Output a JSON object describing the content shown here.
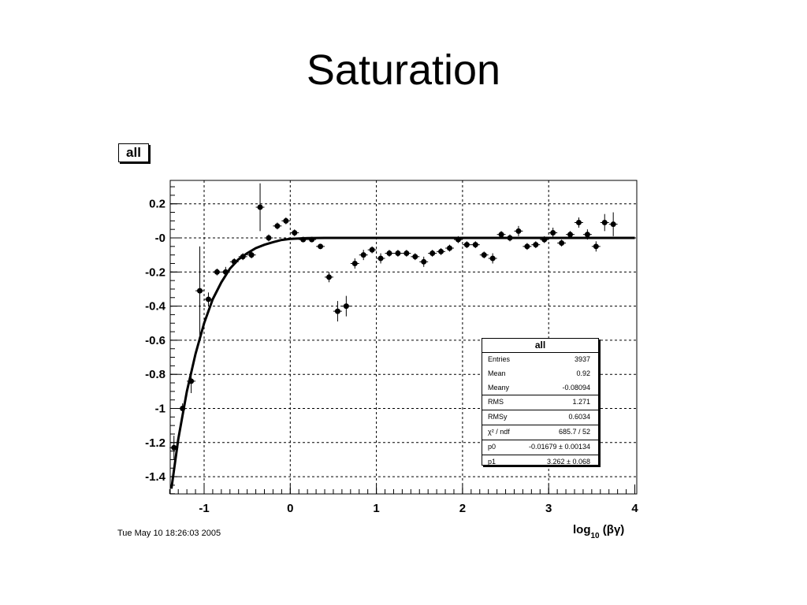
{
  "slide": {
    "title": "Saturation"
  },
  "histogram": {
    "label": "all"
  },
  "timestamp": "Tue May 10 18:26:03 2005",
  "stats": {
    "title": "all",
    "rows": [
      {
        "key": "Entries",
        "value": "3937"
      },
      {
        "key": "Mean",
        "value": "0.92"
      },
      {
        "key": "Meany",
        "value": "-0.08094"
      },
      {
        "key": "RMS",
        "value": "1.271"
      },
      {
        "key": "RMSy",
        "value": "0.6034"
      },
      {
        "key": "χ² / ndf",
        "value": "685.7 / 52"
      },
      {
        "key": "p0",
        "value": "-0.01679 ± 0.00134"
      },
      {
        "key": "p1",
        "value": "3.262 ± 0.068"
      }
    ]
  },
  "chart_data": {
    "type": "scatter",
    "title": "",
    "xlabel": "log₁₀ (βγ)",
    "ylabel": "",
    "xlim": [
      -1.4,
      4.0
    ],
    "ylim": [
      -1.5,
      0.33
    ],
    "grid": true,
    "xticks": [
      -1,
      0,
      1,
      2,
      3,
      4
    ],
    "xtick_labels": [
      "-1",
      "0",
      "1",
      "2",
      "3",
      "4"
    ],
    "yticks": [
      0.2,
      0.0,
      -0.2,
      -0.4,
      -0.6,
      -0.8,
      -1.0,
      -1.2,
      -1.4
    ],
    "ytick_labels": [
      "0.2",
      "-0",
      "-0.2",
      "-0.4",
      "-0.6",
      "-0.8",
      "-1",
      "-1.2",
      "-1.4"
    ],
    "series": [
      {
        "points": [
          {
            "x": -1.35,
            "y": -1.23,
            "ey": 0.07
          },
          {
            "x": -1.25,
            "y": -1.0,
            "ey": 0.03
          },
          {
            "x": -1.15,
            "y": -0.84,
            "ey": 0.07
          },
          {
            "x": -1.05,
            "y": -0.31,
            "ey": 0.26
          },
          {
            "x": -0.95,
            "y": -0.36,
            "ey": 0.04
          },
          {
            "x": -0.85,
            "y": -0.2,
            "ey": 0.02
          },
          {
            "x": -0.75,
            "y": -0.2,
            "ey": 0.03
          },
          {
            "x": -0.65,
            "y": -0.14,
            "ey": 0.02
          },
          {
            "x": -0.55,
            "y": -0.11,
            "ey": 0.02
          },
          {
            "x": -0.45,
            "y": -0.1,
            "ey": 0.02
          },
          {
            "x": -0.35,
            "y": 0.18,
            "ey": 0.14
          },
          {
            "x": -0.25,
            "y": 0.0,
            "ey": 0.02
          },
          {
            "x": -0.15,
            "y": 0.07,
            "ey": 0.02
          },
          {
            "x": -0.05,
            "y": 0.1,
            "ey": 0.02
          },
          {
            "x": 0.05,
            "y": 0.03,
            "ey": 0.02
          },
          {
            "x": 0.15,
            "y": -0.01,
            "ey": 0.015
          },
          {
            "x": 0.25,
            "y": -0.01,
            "ey": 0.015
          },
          {
            "x": 0.35,
            "y": -0.05,
            "ey": 0.015
          },
          {
            "x": 0.45,
            "y": -0.23,
            "ey": 0.03
          },
          {
            "x": 0.55,
            "y": -0.43,
            "ey": 0.06
          },
          {
            "x": 0.65,
            "y": -0.4,
            "ey": 0.06
          },
          {
            "x": 0.75,
            "y": -0.15,
            "ey": 0.03
          },
          {
            "x": 0.85,
            "y": -0.1,
            "ey": 0.03
          },
          {
            "x": 0.95,
            "y": -0.07,
            "ey": 0.02
          },
          {
            "x": 1.05,
            "y": -0.12,
            "ey": 0.03
          },
          {
            "x": 1.15,
            "y": -0.09,
            "ey": 0.02
          },
          {
            "x": 1.25,
            "y": -0.09,
            "ey": 0.02
          },
          {
            "x": 1.35,
            "y": -0.09,
            "ey": 0.02
          },
          {
            "x": 1.45,
            "y": -0.11,
            "ey": 0.02
          },
          {
            "x": 1.55,
            "y": -0.14,
            "ey": 0.03
          },
          {
            "x": 1.65,
            "y": -0.09,
            "ey": 0.02
          },
          {
            "x": 1.75,
            "y": -0.08,
            "ey": 0.02
          },
          {
            "x": 1.85,
            "y": -0.06,
            "ey": 0.02
          },
          {
            "x": 1.95,
            "y": -0.01,
            "ey": 0.02
          },
          {
            "x": 2.05,
            "y": -0.04,
            "ey": 0.02
          },
          {
            "x": 2.15,
            "y": -0.04,
            "ey": 0.02
          },
          {
            "x": 2.25,
            "y": -0.1,
            "ey": 0.02
          },
          {
            "x": 2.35,
            "y": -0.12,
            "ey": 0.03
          },
          {
            "x": 2.45,
            "y": 0.02,
            "ey": 0.02
          },
          {
            "x": 2.55,
            "y": 0.0,
            "ey": 0.02
          },
          {
            "x": 2.65,
            "y": 0.04,
            "ey": 0.03
          },
          {
            "x": 2.75,
            "y": -0.05,
            "ey": 0.02
          },
          {
            "x": 2.85,
            "y": -0.04,
            "ey": 0.02
          },
          {
            "x": 2.95,
            "y": -0.01,
            "ey": 0.02
          },
          {
            "x": 3.05,
            "y": 0.03,
            "ey": 0.03
          },
          {
            "x": 3.15,
            "y": -0.03,
            "ey": 0.02
          },
          {
            "x": 3.25,
            "y": 0.02,
            "ey": 0.02
          },
          {
            "x": 3.35,
            "y": 0.09,
            "ey": 0.03
          },
          {
            "x": 3.45,
            "y": 0.02,
            "ey": 0.03
          },
          {
            "x": 3.55,
            "y": -0.05,
            "ey": 0.03
          },
          {
            "x": 3.65,
            "y": 0.09,
            "ey": 0.05
          },
          {
            "x": 3.75,
            "y": 0.08,
            "ey": 0.07
          }
        ]
      }
    ],
    "fit": {
      "x": [
        -1.38,
        -1.3,
        -1.2,
        -1.1,
        -1.0,
        -0.9,
        -0.8,
        -0.7,
        -0.6,
        -0.5,
        -0.4,
        -0.3,
        -0.2,
        -0.1,
        0.0,
        0.2,
        0.4,
        0.6,
        1.0,
        2.0,
        3.0,
        4.0
      ],
      "y": [
        -1.47,
        -1.18,
        -0.9,
        -0.68,
        -0.5,
        -0.36,
        -0.26,
        -0.18,
        -0.125,
        -0.09,
        -0.06,
        -0.04,
        -0.025,
        -0.012,
        -0.006,
        -0.001,
        0.0,
        0.0,
        0.0,
        0.0,
        0.0,
        0.0
      ]
    },
    "colors": {
      "marker": "#000000",
      "grid": "#000000",
      "fit": "#000000"
    }
  }
}
